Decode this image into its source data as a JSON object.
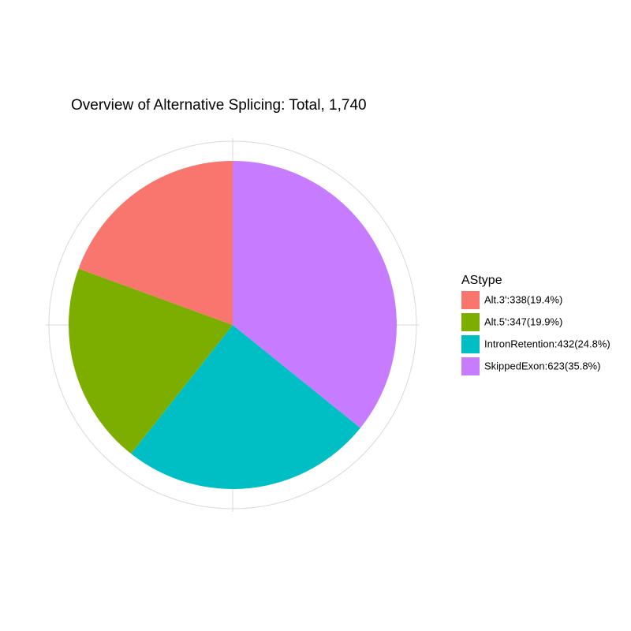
{
  "chart_data": {
    "type": "pie",
    "title": "Overview of Alternative Splicing: Total, 1,740",
    "legend_title": "AStype",
    "categories": [
      "Alt.3':338(19.4%)",
      "Alt.5':347(19.9%)",
      "IntronRetention:432(24.8%)",
      "SkippedExon:623(35.8%)"
    ],
    "values": [
      338,
      347,
      432,
      623
    ],
    "colors": [
      "#F8766D",
      "#7CAE00",
      "#00BFC4",
      "#C77CFF"
    ],
    "legend_position": "right"
  }
}
